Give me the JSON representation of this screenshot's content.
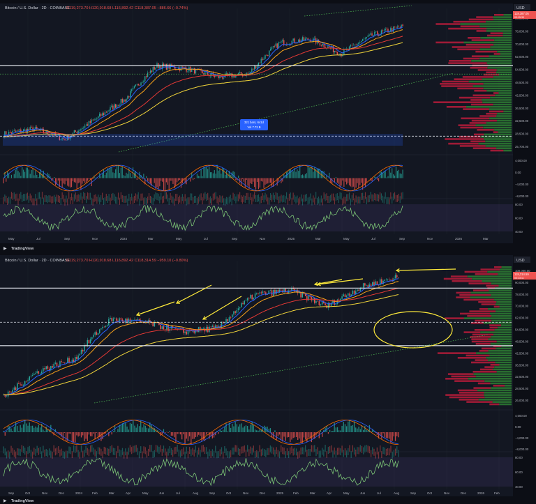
{
  "panels": [
    {
      "header": "Bitcoin / U.S. Dollar · 2D · COINBASE",
      "ohlc": "O119,273.70 H120,918.68 L116,892.42 C118,387.05 −886.66 (−0.74%)",
      "currency": "USD",
      "price_badge": "118,387.05",
      "price_badge_sub": "00:15:39",
      "price_ticks": [
        "90,000.00",
        "78,000.00",
        "70,000.00",
        "62,000.00",
        "54,500.00",
        "48,500.00",
        "42,500.00",
        "36,500.00",
        "32,500.00",
        "28,500.00",
        "25,700.00"
      ],
      "macd_ticks": [
        "4,000.00",
        "0.00",
        "−4,000.00",
        "−8,000.00"
      ],
      "rsi_ticks": [
        "80.00",
        "60.00",
        "40.00"
      ],
      "time_labels": [
        "May",
        "Jul",
        "Sep",
        "Nov",
        "2024",
        "Mar",
        "May",
        "Jul",
        "Sep",
        "Nov",
        "2025",
        "Mar",
        "May",
        "Jul",
        "Sep",
        "Nov",
        "2026",
        "Mar"
      ],
      "range_box": {
        "line1": "321 bars, 641d",
        "line2": "Vol 7.72 B"
      }
    },
    {
      "header": "Bitcoin / U.S. Dollar · 2D · COINBASE",
      "ohlc": "O119,273.70 H120,918.68 L116,892.42 C118,314.59 −959.10 (−0.80%)",
      "currency": "USD",
      "price_badge": "118,314.59",
      "price_badge_sub": "00:13:11",
      "price_ticks": [
        "100,000.00",
        "90,000.00",
        "78,000.00",
        "70,000.00",
        "62,000.00",
        "54,500.00",
        "48,500.00",
        "42,500.00",
        "36,500.00",
        "32,500.00",
        "28,500.00",
        "26,000.00"
      ],
      "macd_ticks": [
        "4,000.00",
        "0.00",
        "−4,000.00",
        "−8,000.00"
      ],
      "rsi_ticks": [
        "80.00",
        "60.00",
        "40.00"
      ],
      "time_labels": [
        "Sep",
        "Oct",
        "Nov",
        "Dec",
        "2024",
        "Feb",
        "Mar",
        "Apr",
        "May",
        "Jun",
        "Jul",
        "Aug",
        "Sep",
        "Oct",
        "Nov",
        "Dec",
        "2025",
        "Feb",
        "Mar",
        "Apr",
        "May",
        "Jun",
        "Jul",
        "Aug",
        "Sep",
        "Oct",
        "Nov",
        "Dec",
        "2026",
        "Feb"
      ]
    }
  ],
  "logo_text": "TradingView",
  "colors": {
    "background": "#0c0e15",
    "up": "#26a69a",
    "down": "#ef5350",
    "ema_fast": "#2962ff",
    "ema_mid": "#f7a21b",
    "ema_slow": "#e53935",
    "ema_long": "#f0d43a",
    "support": "#e0e3eb",
    "trend": "#4caf50",
    "rsi": "#7cc576",
    "annotation": "#ffeb3b",
    "volume_profile_up": "#2e7d32",
    "volume_profile_down": "#b71c3a"
  },
  "chart_data": [
    {
      "type": "candlestick",
      "series": [
        {
          "name": "Bitcoin / U.S. Dollar",
          "x": [
            "2023-04",
            "2023-06",
            "2023-08",
            "2023-10",
            "2024-01",
            "2024-03",
            "2024-05",
            "2024-07",
            "2024-09",
            "2024-11",
            "2025-01",
            "2025-03",
            "2025-05",
            "2025-07"
          ],
          "values": [
            28000,
            30000,
            26000,
            34000,
            45000,
            70000,
            67000,
            60000,
            63000,
            95000,
            100000,
            82000,
            105000,
            118387
          ]
        }
      ]
    },
    {
      "type": "candlestick",
      "series": [
        {
          "name": "Bitcoin / U.S. Dollar",
          "x": [
            "2023-09",
            "2023-11",
            "2024-01",
            "2024-03",
            "2024-05",
            "2024-07",
            "2024-09",
            "2024-11",
            "2025-01",
            "2025-03",
            "2025-05",
            "2025-07"
          ],
          "values": [
            26500,
            37000,
            43000,
            70000,
            67000,
            60000,
            63000,
            95000,
            100000,
            82000,
            105000,
            118314
          ]
        }
      ]
    }
  ]
}
